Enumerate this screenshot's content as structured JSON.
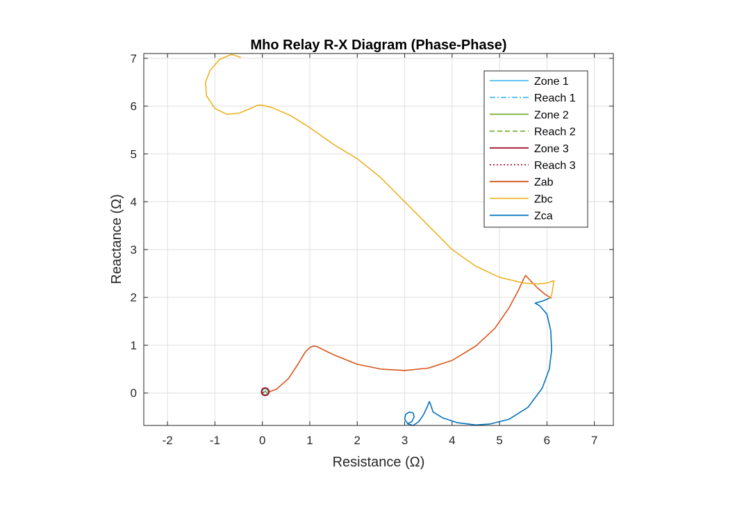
{
  "chart_data": {
    "type": "line",
    "title": "Mho Relay R-X Diagram (Phase-Phase)",
    "xlabel": "Resistance (Ω)",
    "ylabel": "Reactance (Ω)",
    "xlim": [
      -2.5,
      7.4
    ],
    "ylim": [
      -0.68,
      7.1
    ],
    "xticks": [
      -2,
      -1,
      0,
      1,
      2,
      3,
      4,
      5,
      6,
      7
    ],
    "yticks": [
      0,
      1,
      2,
      3,
      4,
      5,
      6,
      7
    ],
    "grid": true,
    "legend_position": "top-right",
    "series": [
      {
        "name": "Zone 1",
        "color": "#4DBEEE",
        "dash": "solid",
        "kind": "circle",
        "center": [
          0.06,
          0.025
        ],
        "radius": 0.063
      },
      {
        "name": "Reach 1",
        "color": "#4DBEEE",
        "dash": "dashdot",
        "kind": "line",
        "x": [
          0,
          0.06
        ],
        "y": [
          0,
          0.03
        ]
      },
      {
        "name": "Zone 2",
        "color": "#77AC30",
        "dash": "solid",
        "kind": "circle",
        "center": [
          0.06,
          0.025
        ],
        "radius": 0.072
      },
      {
        "name": "Reach 2",
        "color": "#77AC30",
        "dash": "dashed",
        "kind": "line",
        "x": [
          0,
          0.07
        ],
        "y": [
          0,
          0.035
        ]
      },
      {
        "name": "Zone 3",
        "color": "#A2142F",
        "dash": "solid",
        "kind": "circle",
        "center": [
          0.06,
          0.025
        ],
        "radius": 0.08
      },
      {
        "name": "Reach 3",
        "color": "#A2142F",
        "dash": "dotted",
        "kind": "line",
        "x": [
          0,
          0.08
        ],
        "y": [
          0,
          0.04
        ]
      },
      {
        "name": "Zab",
        "color": "#D95319",
        "dash": "solid",
        "kind": "line",
        "x": [
          0.08,
          0.3,
          0.55,
          0.75,
          0.9,
          1.0,
          1.08,
          1.15,
          1.25,
          1.5,
          2.0,
          2.5,
          3.0,
          3.5,
          4.0,
          4.5,
          4.9,
          5.2,
          5.4,
          5.5,
          5.55,
          5.65,
          5.8,
          5.95,
          6.1
        ],
        "y": [
          0.0,
          0.08,
          0.3,
          0.6,
          0.85,
          0.95,
          0.98,
          0.97,
          0.92,
          0.8,
          0.6,
          0.5,
          0.47,
          0.52,
          0.68,
          0.98,
          1.35,
          1.78,
          2.15,
          2.37,
          2.46,
          2.35,
          2.2,
          2.07,
          1.98
        ]
      },
      {
        "name": "Zbc",
        "color": "#EDB120",
        "dash": "solid",
        "kind": "line",
        "x": [
          -0.45,
          -0.65,
          -0.9,
          -1.1,
          -1.2,
          -1.18,
          -1.0,
          -0.75,
          -0.5,
          -0.25,
          -0.1,
          0.0,
          0.2,
          0.6,
          1.0,
          1.5,
          2.0,
          2.5,
          3.0,
          3.5,
          4.0,
          4.5,
          5.0,
          5.5,
          5.8,
          6.0,
          6.15,
          6.12,
          6.1,
          6.05
        ],
        "y": [
          7.02,
          7.08,
          6.98,
          6.75,
          6.5,
          6.22,
          5.95,
          5.83,
          5.85,
          5.95,
          6.02,
          6.02,
          5.97,
          5.8,
          5.55,
          5.2,
          4.9,
          4.5,
          4.0,
          3.5,
          3.0,
          2.65,
          2.42,
          2.3,
          2.28,
          2.3,
          2.35,
          2.18,
          2.05,
          1.98
        ]
      },
      {
        "name": "Zca",
        "color": "#0072BD",
        "dash": "solid",
        "kind": "line",
        "x": [
          6.05,
          5.9,
          5.75,
          5.85,
          6.0,
          6.08,
          6.1,
          6.05,
          5.9,
          5.6,
          5.2,
          4.8,
          4.5,
          4.1,
          3.8,
          3.6,
          3.55,
          3.52,
          3.48,
          3.4,
          3.3,
          3.18,
          3.07,
          3.0,
          3.02,
          3.1,
          3.18,
          3.2,
          3.15,
          3.05
        ],
        "y": [
          1.98,
          1.92,
          1.88,
          1.82,
          1.65,
          1.3,
          0.9,
          0.5,
          0.1,
          -0.3,
          -0.55,
          -0.65,
          -0.67,
          -0.62,
          -0.52,
          -0.4,
          -0.25,
          -0.18,
          -0.28,
          -0.45,
          -0.6,
          -0.68,
          -0.65,
          -0.55,
          -0.45,
          -0.4,
          -0.42,
          -0.5,
          -0.6,
          -0.65
        ]
      }
    ]
  }
}
